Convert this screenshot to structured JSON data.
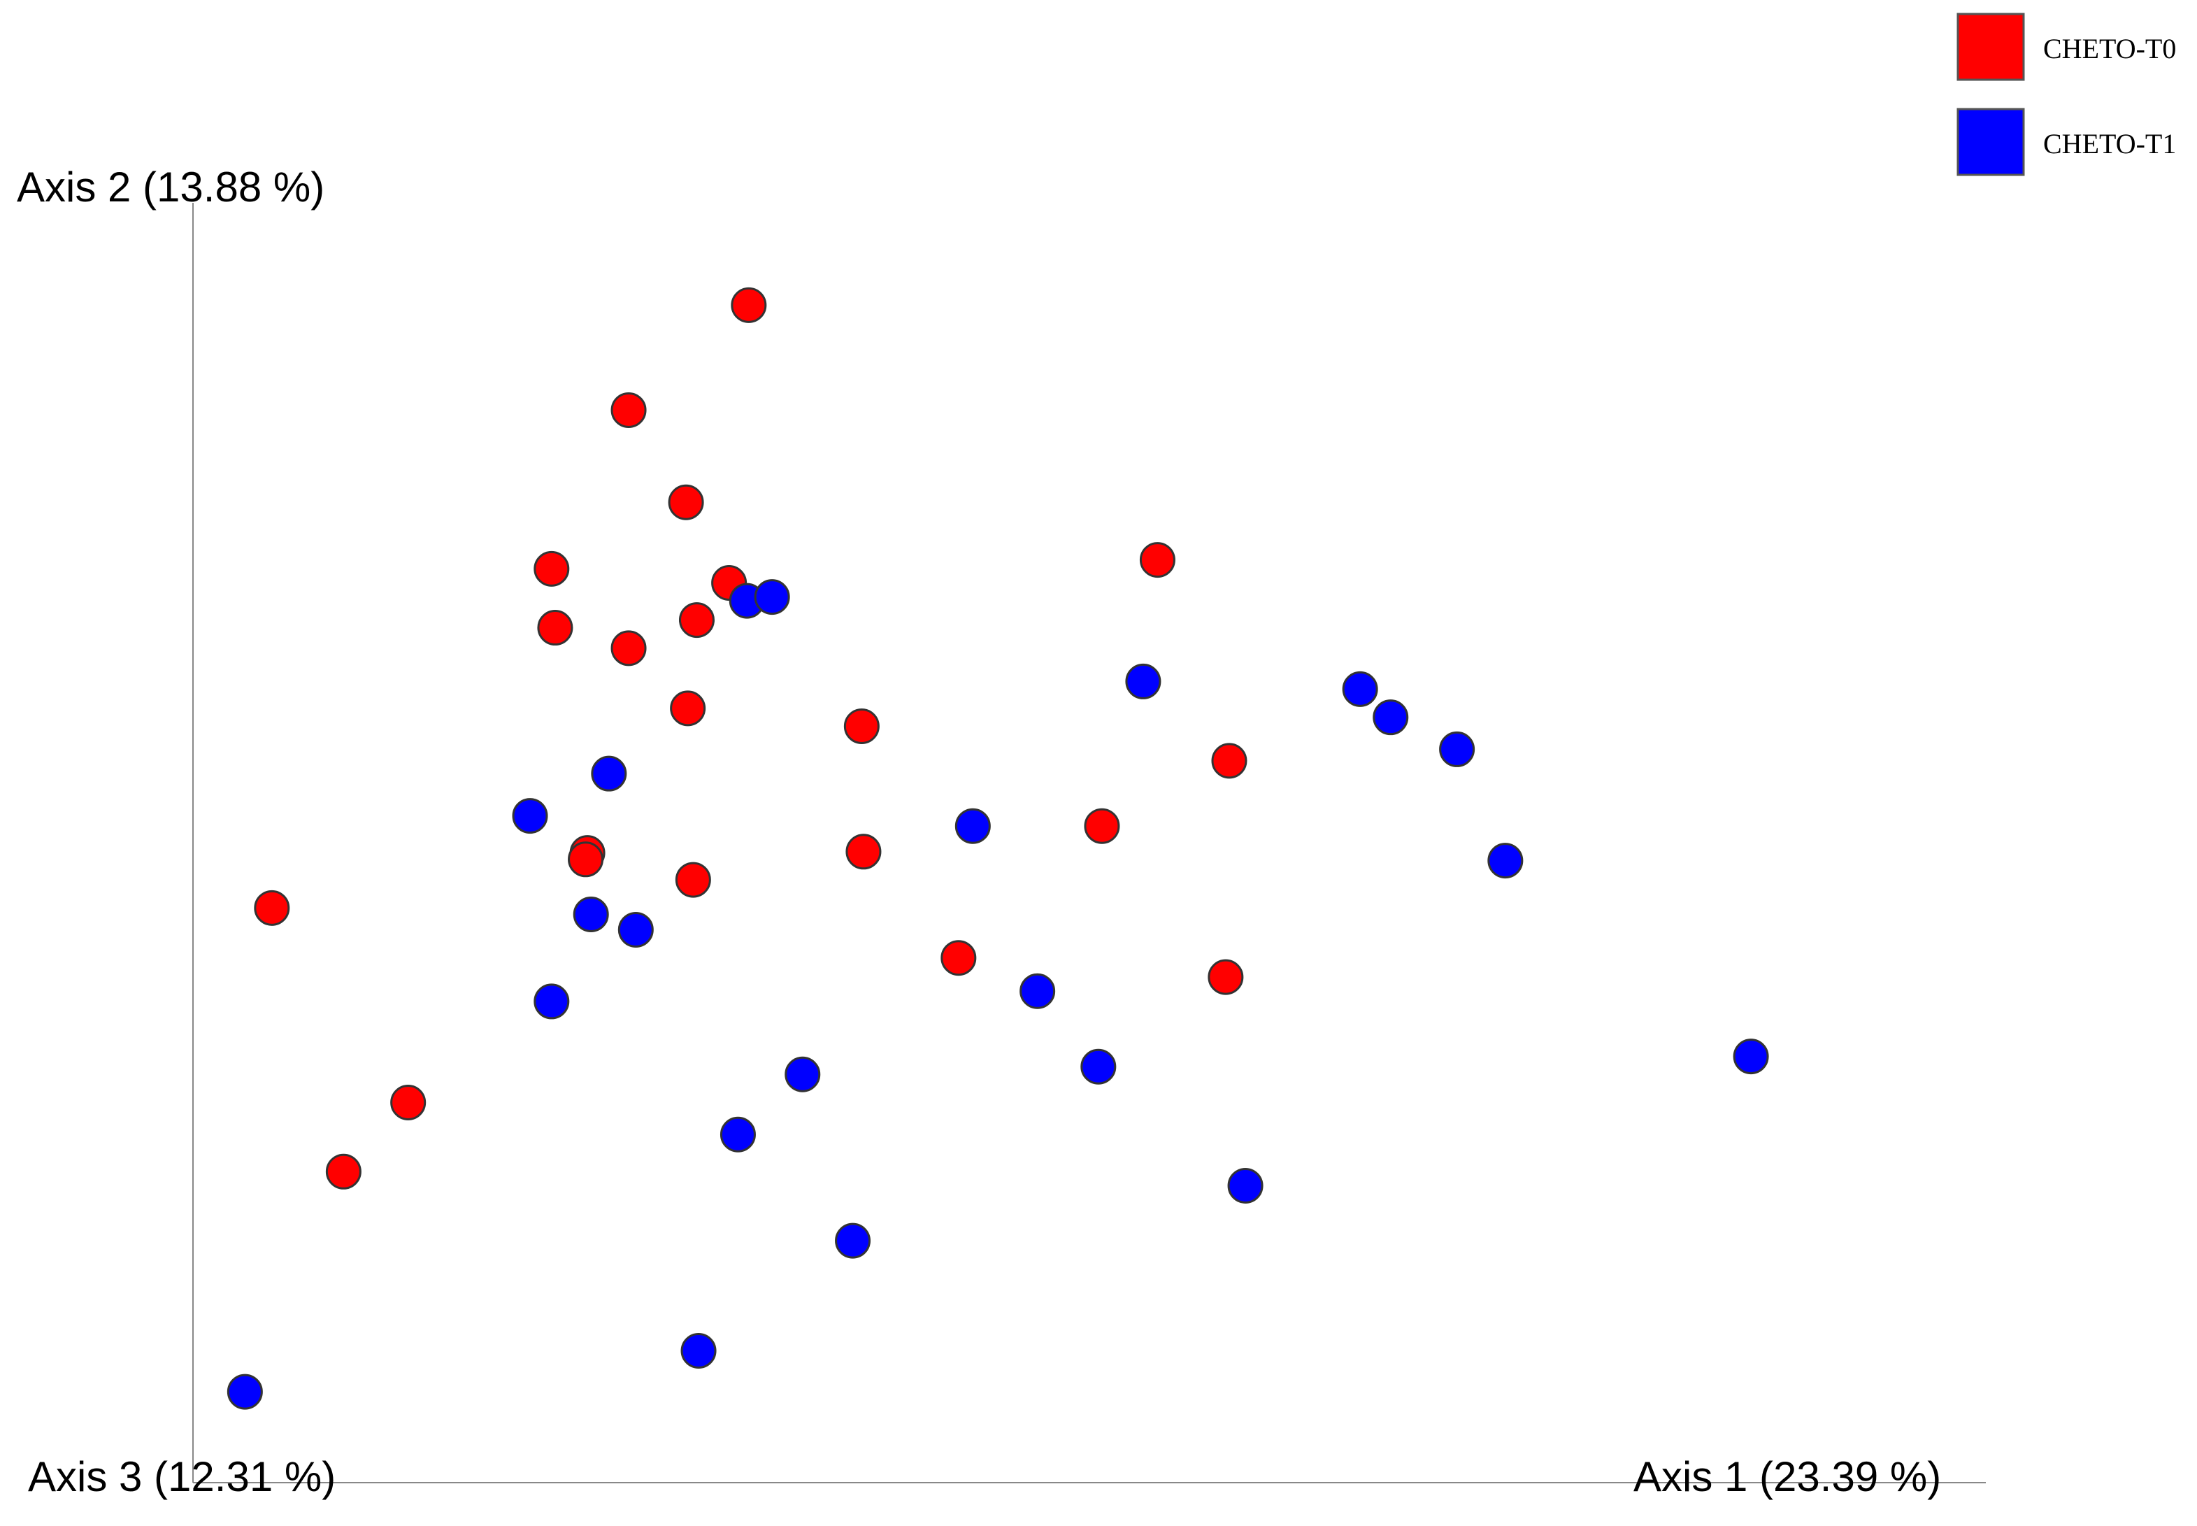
{
  "chart_data": {
    "type": "scatter",
    "x_label": "Axis 1 (23.39 %)",
    "y_label": "Axis 2 (13.88 %)",
    "z_label": "Axis 3 (12.31 %)",
    "xlim": [
      0,
      100
    ],
    "ylim": [
      0,
      100
    ],
    "series": [
      {
        "name": "CHETO-T0",
        "color": "#ff0000",
        "x": [
          31.0,
          24.3,
          27.5,
          20.0,
          53.8,
          29.9,
          28.1,
          20.2,
          24.3,
          27.6,
          37.3,
          57.8,
          22.0,
          21.9,
          37.4,
          50.7,
          27.9,
          4.4,
          42.7,
          57.6,
          12.0,
          8.4
        ],
        "values": [
          92.0,
          83.8,
          76.6,
          71.4,
          72.1,
          70.3,
          67.4,
          66.8,
          65.2,
          60.5,
          59.1,
          56.4,
          49.2,
          48.7,
          49.3,
          51.3,
          47.1,
          44.9,
          41.0,
          39.5,
          29.7,
          24.3
        ]
      },
      {
        "name": "CHETO-T1",
        "color": "#0000ff",
        "x": [
          30.9,
          32.3,
          53.0,
          65.1,
          66.8,
          70.5,
          23.2,
          18.8,
          43.5,
          73.2,
          22.2,
          24.7,
          20.0,
          47.1,
          34.0,
          50.5,
          30.4,
          86.9,
          58.7,
          36.8,
          28.2,
          2.9
        ],
        "values": [
          68.9,
          69.2,
          62.6,
          62.0,
          59.8,
          57.3,
          55.4,
          52.1,
          51.3,
          48.6,
          44.4,
          43.2,
          37.6,
          38.4,
          31.9,
          32.5,
          27.2,
          33.3,
          23.2,
          18.9,
          10.3,
          7.1
        ]
      }
    ]
  }
}
